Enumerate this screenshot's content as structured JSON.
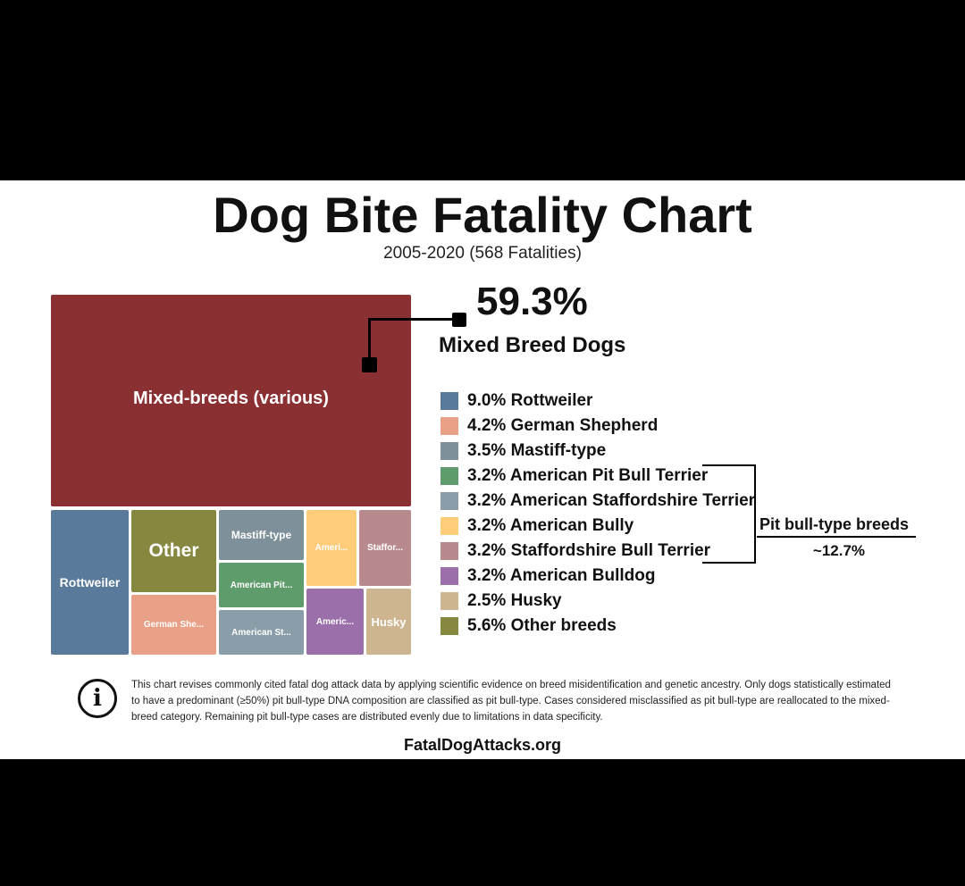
{
  "chart_data": {
    "type": "treemap",
    "title": "Dog Bite Fatality Chart",
    "subtitle": "2005-2020 (568 Fatalities)",
    "series": [
      {
        "name": "Mixed-breeds (various)",
        "value": 59.3,
        "color": "#8B3032",
        "tile_label": "Mixed-breeds (various)"
      },
      {
        "name": "Rottweiler",
        "value": 9.0,
        "color": "#5A7A9C",
        "tile_label": "Rottweiler"
      },
      {
        "name": "Other breeds",
        "value": 5.6,
        "color": "#86883F",
        "tile_label": "Other"
      },
      {
        "name": "German Shepherd",
        "value": 4.2,
        "color": "#E8A086",
        "tile_label": "German She..."
      },
      {
        "name": "Mastiff-type",
        "value": 3.5,
        "color": "#7E9099",
        "tile_label": "Mastiff-type"
      },
      {
        "name": "American Pit Bull Terrier",
        "value": 3.2,
        "color": "#5E9C6C",
        "tile_label": "American Pit..."
      },
      {
        "name": "American Staffordshire Terrier",
        "value": 3.2,
        "color": "#8A9EAA",
        "tile_label": "American St..."
      },
      {
        "name": "American Bully",
        "value": 3.2,
        "color": "#FFCC7A",
        "tile_label": "Ameri..."
      },
      {
        "name": "Staffordshire Bull Terrier",
        "value": 3.2,
        "color": "#B88A8E",
        "tile_label": "Staffor..."
      },
      {
        "name": "American Bulldog",
        "value": 3.2,
        "color": "#9B70AA",
        "tile_label": "Americ..."
      },
      {
        "name": "Husky",
        "value": 2.5,
        "color": "#CDB590",
        "tile_label": "Husky"
      }
    ],
    "highlight": {
      "percent": "59.3%",
      "label": "Mixed Breed Dogs"
    },
    "legend": [
      {
        "text": "9.0% Rottweiler",
        "color": "#5A7A9C"
      },
      {
        "text": "4.2% German Shepherd",
        "color": "#E8A086"
      },
      {
        "text": "3.5% Mastiff-type",
        "color": "#7E9099"
      },
      {
        "text": "3.2% American Pit Bull Terrier",
        "color": "#5E9C6C"
      },
      {
        "text": "3.2% American Staffordshire Terrier",
        "color": "#8A9EAA"
      },
      {
        "text": "3.2% American Bully",
        "color": "#FFCC7A"
      },
      {
        "text": "3.2% Staffordshire Bull Terrier",
        "color": "#B88A8E"
      },
      {
        "text": "3.2% American Bulldog",
        "color": "#9B70AA"
      },
      {
        "text": "2.5% Husky",
        "color": "#CDB590"
      },
      {
        "text": "5.6% Other breeds",
        "color": "#86883F"
      }
    ],
    "group_annotation": {
      "label": "Pit bull-type breeds",
      "value": "~12.7%"
    }
  },
  "info_text": "This chart revises commonly cited fatal dog attack data by applying scientific evidence on breed misidentification and genetic ancestry. Only dogs statistically estimated to have a predominant (≥50%) pit bull-type DNA composition are classified as pit bull-type. Cases considered misclassified as pit bull-type are reallocated to the mixed-breed category. Remaining pit bull-type cases are distributed evenly due to limitations in data specificity.",
  "source": "FatalDogAttacks.org",
  "icons": {
    "info": "info-icon"
  }
}
